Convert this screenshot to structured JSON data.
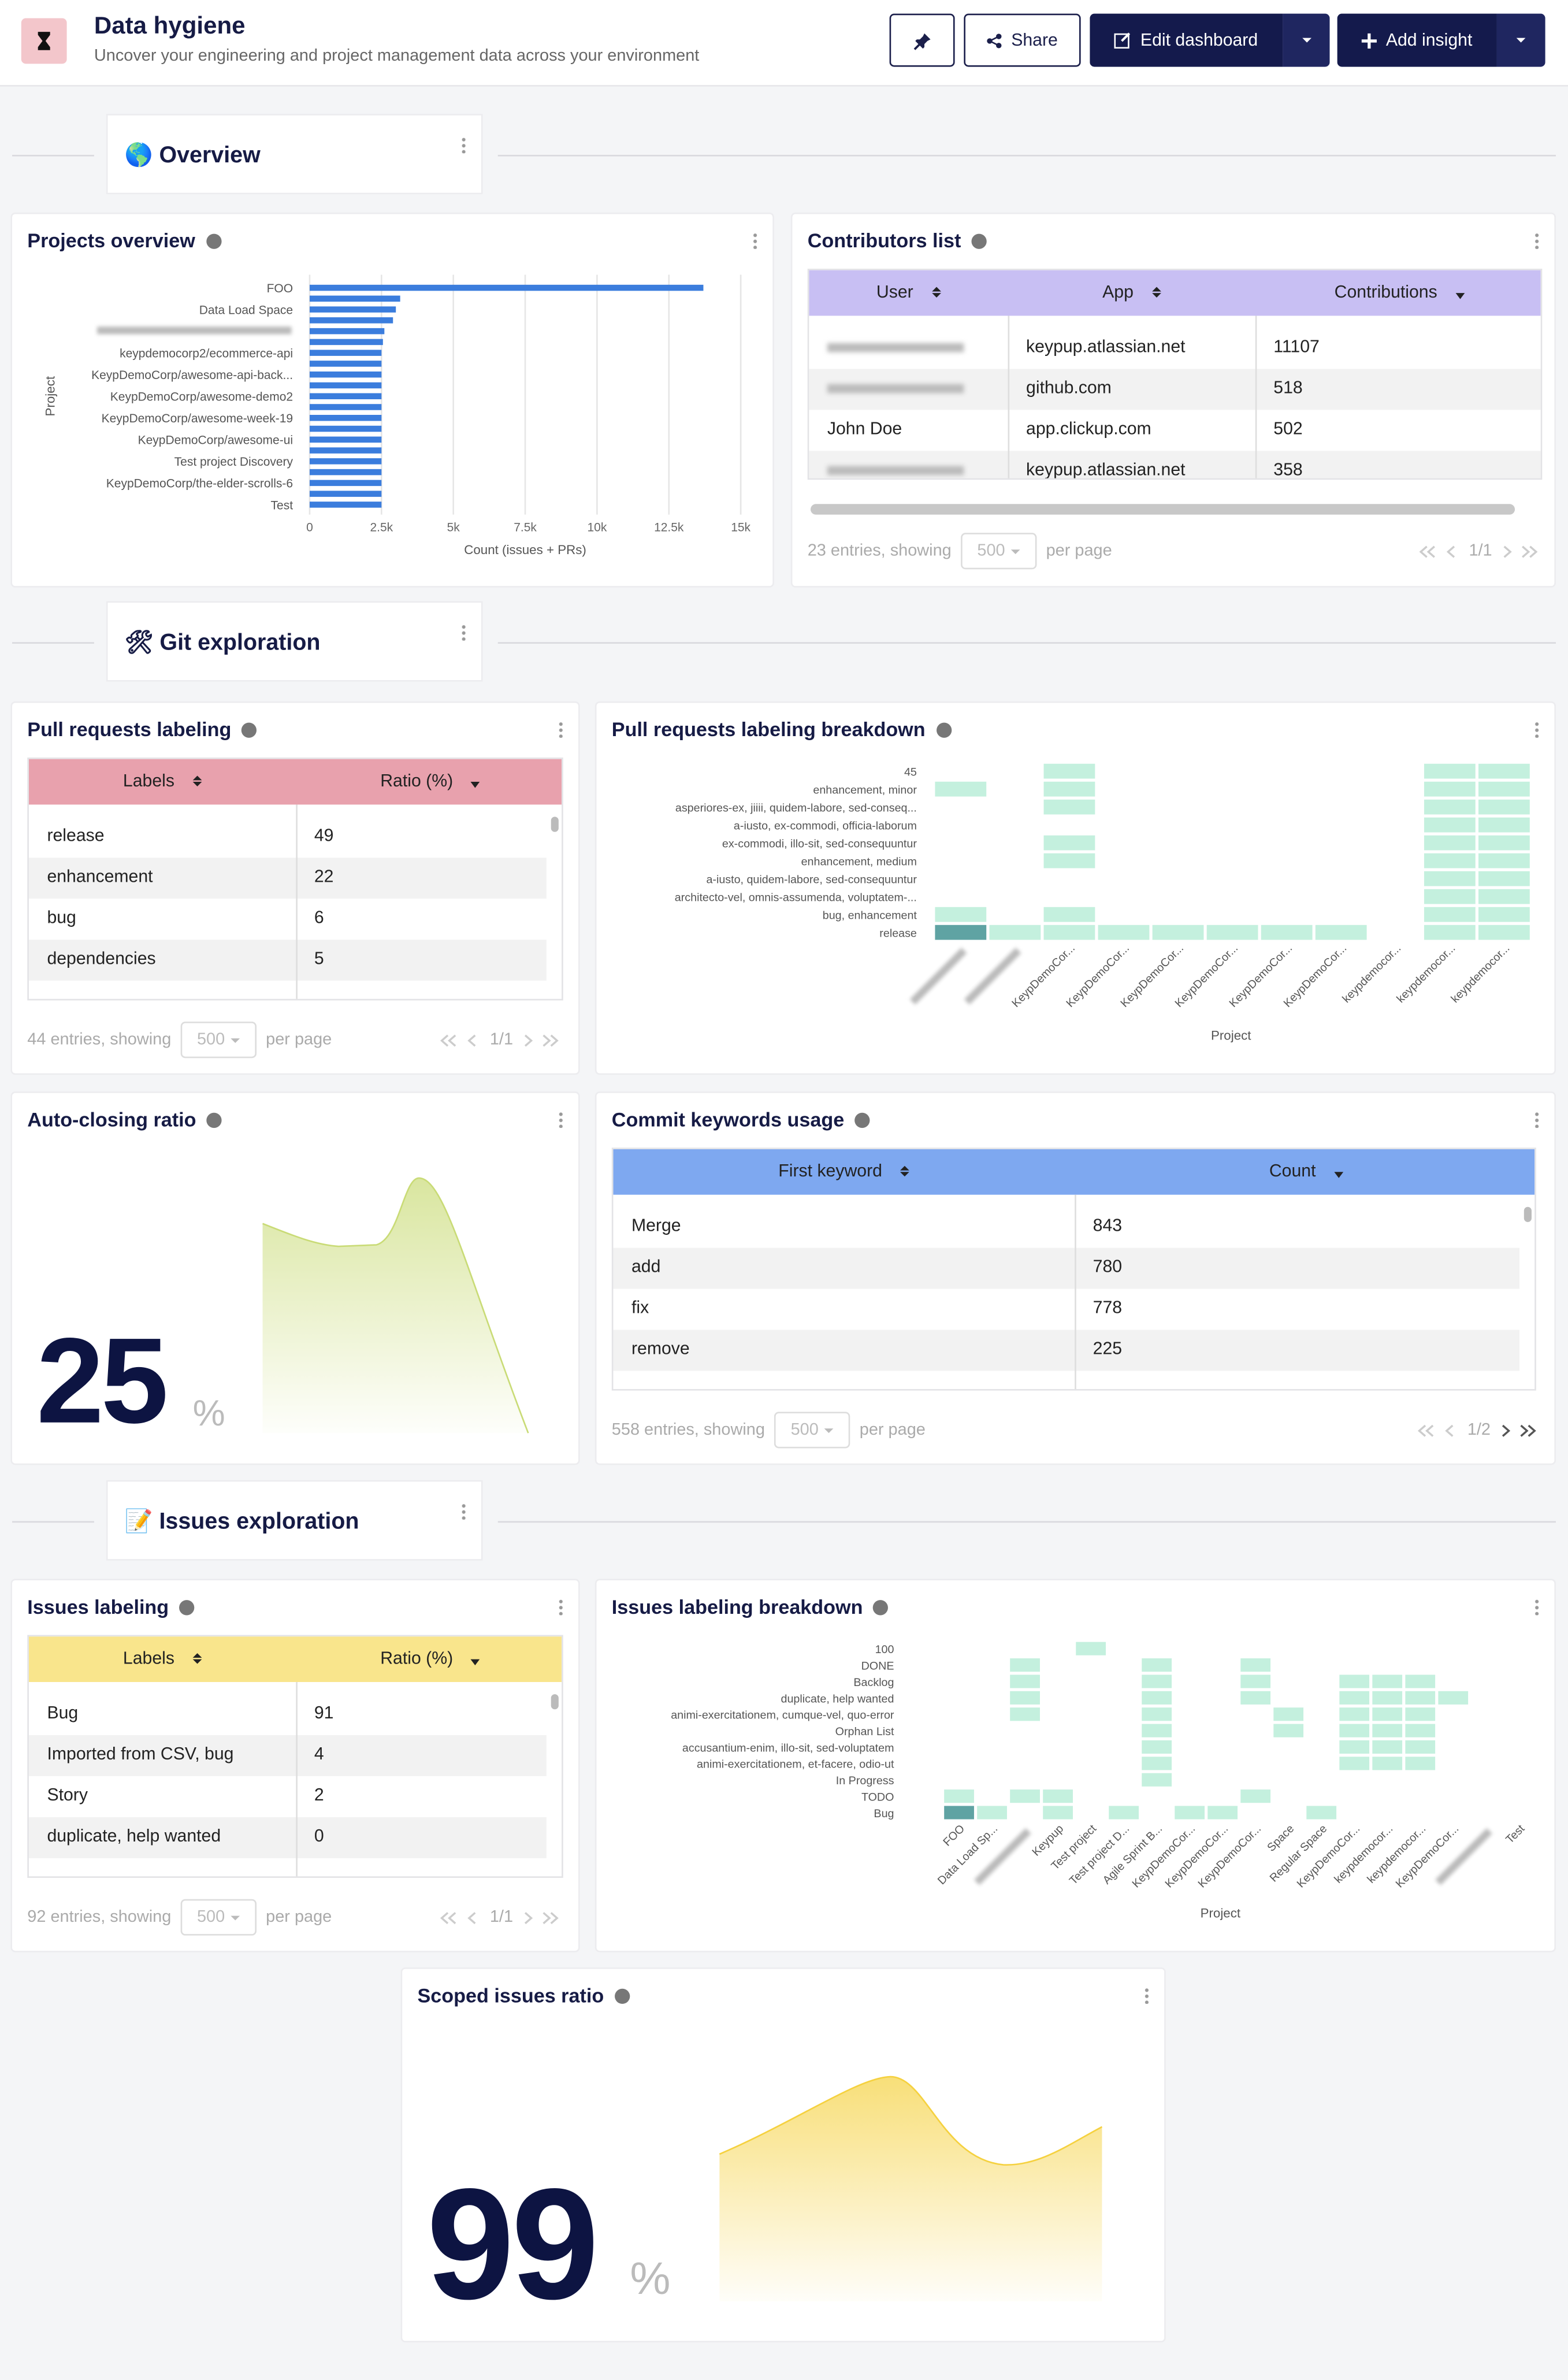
{
  "header": {
    "title": "Data hygiene",
    "subtitle": "Uncover your engineering and project management data across your environment",
    "share": "Share",
    "edit_dashboard": "Edit dashboard",
    "add_insight": "Add insight"
  },
  "sections": [
    "🌎 Overview",
    "🛠 Git exploration",
    "📝 Issues exploration"
  ],
  "projects_overview": {
    "title": "Projects overview",
    "chart_data": {
      "type": "bar",
      "orientation": "horizontal",
      "color": "#3b7ddd",
      "grid": true,
      "categories": [
        "FOO",
        null,
        "Data Load Space",
        null,
        null,
        null,
        "keypdemocorp2/ecommerce-api",
        null,
        "KeypDemoCorp/awesome-api-back...",
        null,
        "KeypDemoCorp/awesome-demo2",
        null,
        "KeypDemoCorp/awesome-week-19",
        null,
        "KeypDemoCorp/awesome-ui",
        null,
        "Test project Discovery",
        null,
        "KeypDemoCorp/the-elder-scrolls-6",
        null,
        "Test"
      ],
      "values": [
        13700,
        3150,
        3000,
        2900,
        2600,
        2550,
        2500,
        2500,
        2500,
        2500,
        2500,
        2500,
        2500,
        2500,
        2500,
        2500,
        2500,
        2500,
        2500,
        2500,
        2500
      ],
      "xlim": [
        0,
        15000
      ],
      "xticks": [
        0,
        {
          "value": 2500,
          "label": "2.5k"
        },
        {
          "value": 5000,
          "label": "5k"
        },
        {
          "value": 7500,
          "label": "7.5k"
        },
        {
          "value": 10000,
          "label": "10k"
        },
        {
          "value": 12500,
          "label": "12.5k"
        },
        {
          "value": 15000,
          "label": "15k"
        }
      ],
      "xlabel": "Count (issues + PRs)",
      "ylabel": "Project"
    }
  },
  "contributors_list": {
    "title": "Contributors list",
    "columns": [
      "User",
      "App",
      "Contributions"
    ],
    "rows": [
      [
        null,
        "keypup.atlassian.net",
        11107
      ],
      [
        null,
        "github.com",
        518
      ],
      [
        "John Doe",
        "app.clickup.com",
        502
      ],
      [
        null,
        "keypup.atlassian.net",
        358
      ]
    ],
    "footer": {
      "entries": "23 entries, showing",
      "per_page": "500",
      "per_page_text": "per page",
      "page": "1/1"
    }
  },
  "pr_labeling": {
    "title": "Pull requests labeling",
    "columns": [
      "Labels",
      "Ratio (%)"
    ],
    "rows": [
      [
        "release",
        49
      ],
      [
        "enhancement",
        22
      ],
      [
        "bug",
        6
      ],
      [
        "dependencies",
        5
      ]
    ],
    "footer": {
      "entries": "44 entries, showing",
      "per_page": "500",
      "per_page_text": "per page",
      "page": "1/1"
    }
  },
  "pr_breakdown": {
    "title": "Pull requests labeling breakdown",
    "chart_data": {
      "type": "heatmap",
      "y_categories": [
        "45",
        "enhancement, minor",
        "asperiores-ex, jiiii, quidem-labore, sed-conseq...",
        "a-iusto, ex-commodi, officia-laborum",
        "ex-commodi, illo-sit, sed-consequuntur",
        "enhancement, medium",
        "a-iusto, quidem-labore, sed-consequuntur",
        "architecto-vel, omnis-assumenda, voluptatem-...",
        "bug, enhancement",
        "release"
      ],
      "x_categories": [
        null,
        null,
        "KeypDemoCor...",
        "KeypDemoCor...",
        "KeypDemoCor...",
        "KeypDemoCor...",
        "KeypDemoCor...",
        "KeypDemoCor...",
        "keypdemocor...",
        "keypdemocor...",
        "keypdemocor..."
      ],
      "xlabel": "Project"
    }
  },
  "auto_closing": {
    "title": "Auto-closing ratio",
    "value": 25,
    "unit": "%"
  },
  "commit_keywords": {
    "title": "Commit keywords usage",
    "columns": [
      "First keyword",
      "Count"
    ],
    "rows": [
      [
        "Merge",
        843
      ],
      [
        "add",
        780
      ],
      [
        "fix",
        778
      ],
      [
        "remove",
        225
      ]
    ],
    "footer": {
      "entries": "558 entries, showing",
      "per_page": "500",
      "per_page_text": "per page",
      "page": "1/2"
    }
  },
  "issues_labeling": {
    "title": "Issues labeling",
    "columns": [
      "Labels",
      "Ratio (%)"
    ],
    "rows": [
      [
        "Bug",
        91
      ],
      [
        "Imported from CSV, bug",
        4
      ],
      [
        "Story",
        2
      ],
      [
        "duplicate, help wanted",
        0
      ]
    ],
    "footer": {
      "entries": "92 entries, showing",
      "per_page": "500",
      "per_page_text": "per page",
      "page": "1/1"
    }
  },
  "issues_breakdown": {
    "title": "Issues labeling breakdown",
    "chart_data": {
      "type": "heatmap",
      "y_categories": [
        "100",
        "DONE",
        "Backlog",
        "duplicate, help wanted",
        "animi-exercitationem, cumque-vel, quo-error",
        "Orphan List",
        "accusantium-enim, illo-sit, sed-voluptatem",
        "animi-exercitationem, et-facere, odio-ut",
        "In Progress",
        "TODO",
        "Bug"
      ],
      "x_categories": [
        "FOO",
        "Data Load Sp...",
        null,
        "Keypup",
        "Test project",
        "Test project D...",
        "Agile Sprint B...",
        "KeypDemoCor...",
        "KeypDemoCor...",
        "KeypDemoCor...",
        "Space",
        "Regular Space",
        "KeypDemoCor...",
        "keypdemocor...",
        "keypdemocor...",
        "KeypDemoCor...",
        null,
        "Test"
      ],
      "xlabel": "Project"
    }
  },
  "scoped_issues": {
    "title": "Scoped issues ratio",
    "value": 99,
    "unit": "%"
  }
}
